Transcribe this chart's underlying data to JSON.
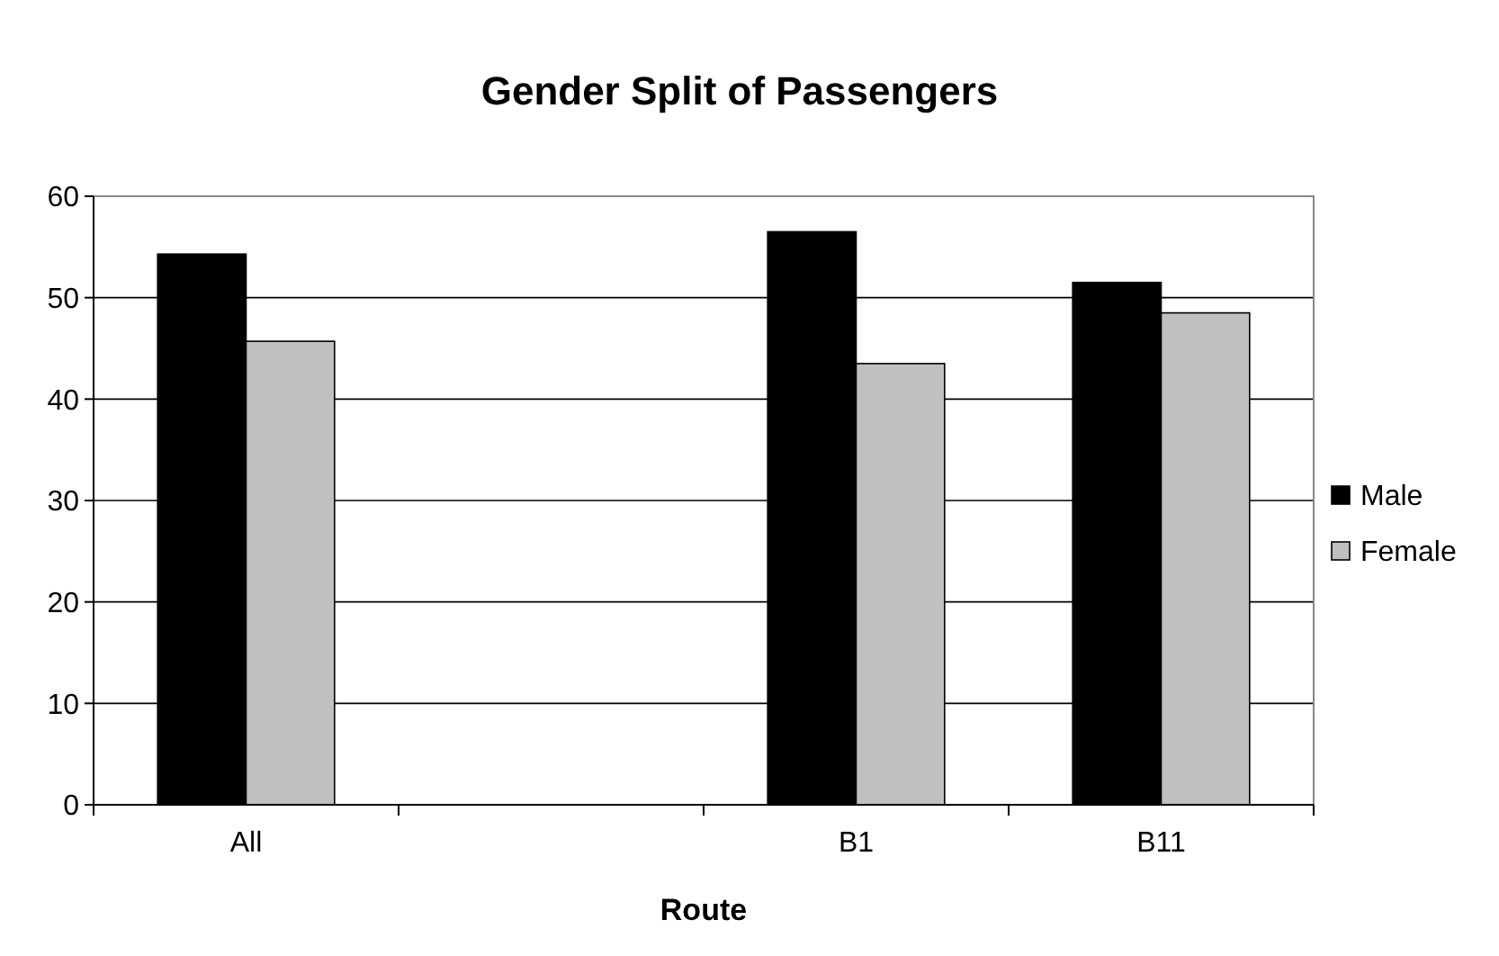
{
  "chart_data": {
    "type": "bar",
    "title": "Gender Split of Passengers",
    "xlabel": "Route",
    "categories": [
      "All",
      null,
      "B1",
      "B11"
    ],
    "series": [
      {
        "name": "Male",
        "color": "#000000",
        "values": [
          54.3,
          null,
          56.5,
          51.5
        ]
      },
      {
        "name": "Female",
        "color": "#c0c0c0",
        "values": [
          45.7,
          null,
          43.5,
          48.5
        ]
      }
    ],
    "ylim": [
      0,
      60
    ],
    "yticks": [
      0,
      10,
      20,
      30,
      40,
      50,
      60
    ],
    "grid": "y",
    "legend": "right"
  }
}
